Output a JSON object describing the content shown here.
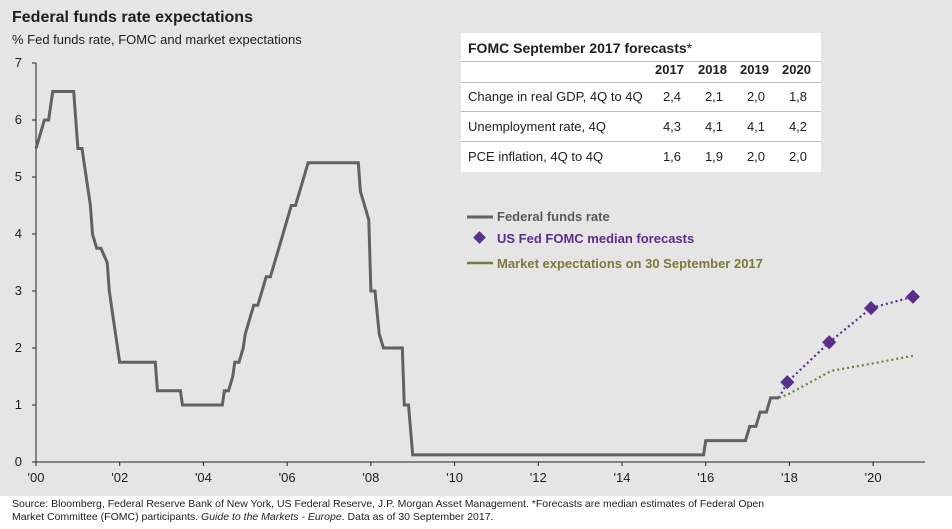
{
  "title": "Federal funds rate expectations",
  "subtitle": "% Fed funds rate, FOMC and market expectations",
  "table": {
    "title": "FOMC September 2017 forecasts",
    "title_suffix": "*",
    "years": [
      "2017",
      "2018",
      "2019",
      "2020"
    ],
    "rows": [
      {
        "label": "Change in real GDP, 4Q to 4Q",
        "values": [
          "2,4",
          "2,1",
          "2,0",
          "1,8"
        ]
      },
      {
        "label": "Unemployment rate, 4Q",
        "values": [
          "4,3",
          "4,1",
          "4,1",
          "4,2"
        ]
      },
      {
        "label": "PCE inflation, 4Q to 4Q",
        "values": [
          "1,6",
          "1,9",
          "2,0",
          "2,0"
        ]
      }
    ]
  },
  "legend": {
    "fed_funds": "Federal funds rate",
    "fomc": "US Fed FOMC median forecasts",
    "market": "Market expectations on 30 September 2017"
  },
  "source_line1": "Source: Bloomberg, Federal Reserve Bank of New York, US Federal Reserve, J.P. Morgan Asset Management. *Forecasts are median estimates of Federal Open",
  "source_line2_a": "Market Committee (FOMC) participants. ",
  "source_line2_b": "Guide to the Markets - Europe",
  "source_line2_c": ". Data as of 30 September 2017.",
  "colors": {
    "fed_funds": "#616161",
    "fomc": "#5a2e8a",
    "market": "#7a7a3a",
    "background": "#e5e5e5"
  },
  "chart_data": {
    "type": "line",
    "title": "Federal funds rate expectations",
    "ylabel": "% Fed funds rate, FOMC and market expectations",
    "xlim": [
      2000,
      2021
    ],
    "ylim": [
      0,
      7
    ],
    "yticks": [
      0,
      1,
      2,
      3,
      4,
      5,
      6,
      7
    ],
    "xticks": [
      2000,
      2002,
      2004,
      2006,
      2008,
      2010,
      2012,
      2014,
      2016,
      2018,
      2020
    ],
    "xtick_labels": [
      "'00",
      "'02",
      "'04",
      "'06",
      "'08",
      "'10",
      "'12",
      "'14",
      "'16",
      "'18",
      "'20"
    ],
    "grid": false,
    "legend_position": "right",
    "series": [
      {
        "name": "Federal funds rate",
        "style": "solid",
        "points": [
          [
            2000.0,
            5.5
          ],
          [
            2000.1,
            5.75
          ],
          [
            2000.2,
            6.0
          ],
          [
            2000.3,
            6.0
          ],
          [
            2000.4,
            6.5
          ],
          [
            2000.9,
            6.5
          ],
          [
            2001.0,
            5.5
          ],
          [
            2001.1,
            5.5
          ],
          [
            2001.2,
            5.0
          ],
          [
            2001.3,
            4.5
          ],
          [
            2001.35,
            4.0
          ],
          [
            2001.45,
            3.75
          ],
          [
            2001.55,
            3.75
          ],
          [
            2001.7,
            3.5
          ],
          [
            2001.75,
            3.0
          ],
          [
            2001.85,
            2.5
          ],
          [
            2001.95,
            2.0
          ],
          [
            2002.0,
            1.75
          ],
          [
            2002.85,
            1.75
          ],
          [
            2002.9,
            1.25
          ],
          [
            2003.45,
            1.25
          ],
          [
            2003.5,
            1.0
          ],
          [
            2004.45,
            1.0
          ],
          [
            2004.5,
            1.25
          ],
          [
            2004.6,
            1.25
          ],
          [
            2004.7,
            1.5
          ],
          [
            2004.75,
            1.75
          ],
          [
            2004.85,
            1.75
          ],
          [
            2004.95,
            2.0
          ],
          [
            2005.0,
            2.25
          ],
          [
            2005.1,
            2.5
          ],
          [
            2005.2,
            2.75
          ],
          [
            2005.3,
            2.75
          ],
          [
            2005.4,
            3.0
          ],
          [
            2005.5,
            3.25
          ],
          [
            2005.6,
            3.25
          ],
          [
            2005.7,
            3.5
          ],
          [
            2005.8,
            3.75
          ],
          [
            2005.9,
            4.0
          ],
          [
            2006.0,
            4.25
          ],
          [
            2006.1,
            4.5
          ],
          [
            2006.2,
            4.5
          ],
          [
            2006.3,
            4.75
          ],
          [
            2006.4,
            5.0
          ],
          [
            2006.5,
            5.25
          ],
          [
            2007.7,
            5.25
          ],
          [
            2007.75,
            4.75
          ],
          [
            2007.85,
            4.5
          ],
          [
            2007.95,
            4.25
          ],
          [
            2008.0,
            3.0
          ],
          [
            2008.1,
            3.0
          ],
          [
            2008.2,
            2.25
          ],
          [
            2008.3,
            2.0
          ],
          [
            2008.75,
            2.0
          ],
          [
            2008.8,
            1.0
          ],
          [
            2008.9,
            1.0
          ],
          [
            2009.0,
            0.125
          ],
          [
            2015.95,
            0.125
          ],
          [
            2016.0,
            0.375
          ],
          [
            2016.95,
            0.375
          ],
          [
            2017.05,
            0.625
          ],
          [
            2017.2,
            0.625
          ],
          [
            2017.3,
            0.875
          ],
          [
            2017.45,
            0.875
          ],
          [
            2017.55,
            1.125
          ],
          [
            2017.75,
            1.125
          ]
        ]
      },
      {
        "name": "US Fed FOMC median forecasts",
        "style": "dotted-with-diamonds",
        "points": [
          [
            2017.75,
            1.125
          ],
          [
            2017.95,
            1.4
          ],
          [
            2018.95,
            2.1
          ],
          [
            2019.95,
            2.7
          ],
          [
            2020.95,
            2.9
          ]
        ]
      },
      {
        "name": "Market expectations on 30 September 2017",
        "style": "dotted",
        "points": [
          [
            2017.75,
            1.125
          ],
          [
            2018.0,
            1.2
          ],
          [
            2019.0,
            1.6
          ],
          [
            2020.0,
            1.73
          ],
          [
            2021.0,
            1.87
          ]
        ]
      }
    ]
  }
}
